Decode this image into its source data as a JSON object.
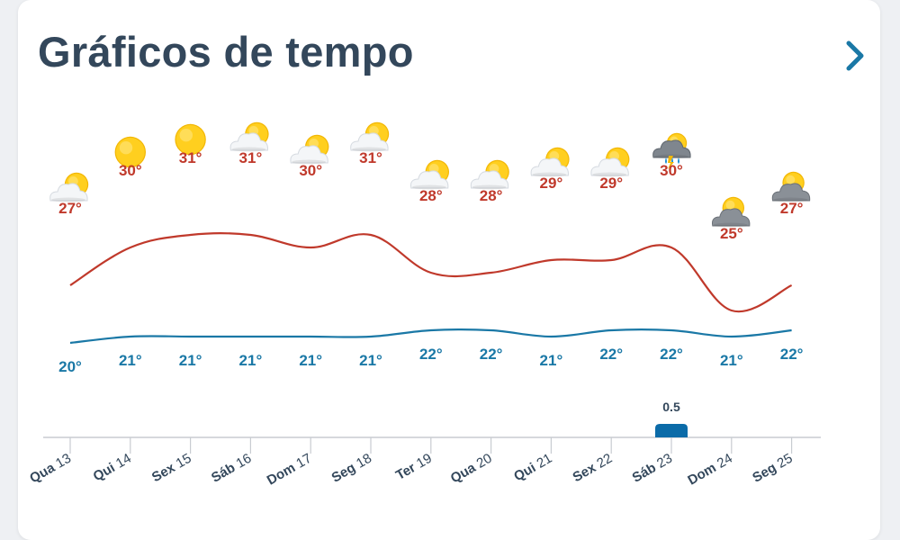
{
  "header": {
    "title": "Gráficos de tempo",
    "more_icon": "chevron-right-icon"
  },
  "colors": {
    "max_line": "#c0392b",
    "min_line": "#1a78a6",
    "precip_bar": "#0b6ba8",
    "title": "#33475b",
    "axis": "#c8ccd1"
  },
  "chart_data": {
    "type": "line",
    "days": [
      {
        "weekday": "Qua",
        "date": "13",
        "icon": "partly-cloudy-icon"
      },
      {
        "weekday": "Qui",
        "date": "14",
        "icon": "sun-icon"
      },
      {
        "weekday": "Sex",
        "date": "15",
        "icon": "sun-icon"
      },
      {
        "weekday": "Sáb",
        "date": "16",
        "icon": "partly-cloudy-icon"
      },
      {
        "weekday": "Dom",
        "date": "17",
        "icon": "partly-cloudy-icon"
      },
      {
        "weekday": "Seg",
        "date": "18",
        "icon": "partly-cloudy-icon"
      },
      {
        "weekday": "Ter",
        "date": "19",
        "icon": "partly-cloudy-icon"
      },
      {
        "weekday": "Qua",
        "date": "20",
        "icon": "partly-cloudy-icon"
      },
      {
        "weekday": "Qui",
        "date": "21",
        "icon": "partly-cloudy-icon"
      },
      {
        "weekday": "Sex",
        "date": "22",
        "icon": "partly-cloudy-icon"
      },
      {
        "weekday": "Sáb",
        "date": "23",
        "icon": "thunderstorm-rain-icon"
      },
      {
        "weekday": "Dom",
        "date": "24",
        "icon": "cloudy-sun-icon"
      },
      {
        "weekday": "Seg",
        "date": "25",
        "icon": "cloudy-sun-icon"
      }
    ],
    "series": [
      {
        "values": [
          27,
          30,
          31,
          31,
          30,
          31,
          28,
          28,
          29,
          29,
          30,
          25,
          27
        ],
        "labels": [
          "27°",
          "30°",
          "31°",
          "31°",
          "30°",
          "31°",
          "28°",
          "28°",
          "29°",
          "29°",
          "30°",
          "25°",
          "27°"
        ]
      },
      {
        "values": [
          20,
          21,
          21,
          21,
          21,
          21,
          22,
          22,
          21,
          22,
          22,
          21,
          22
        ],
        "labels": [
          "20°",
          "21°",
          "21°",
          "21°",
          "21°",
          "21°",
          "22°",
          "22°",
          "21°",
          "22°",
          "22°",
          "21°",
          "22°"
        ]
      }
    ],
    "precipitation": {
      "values": [
        0,
        0,
        0,
        0,
        0,
        0,
        0,
        0,
        0,
        0,
        0.5,
        0,
        0
      ],
      "labels": [
        "",
        "",
        "",
        "",
        "",
        "",
        "",
        "",
        "",
        "",
        "0.5",
        "",
        ""
      ]
    }
  }
}
